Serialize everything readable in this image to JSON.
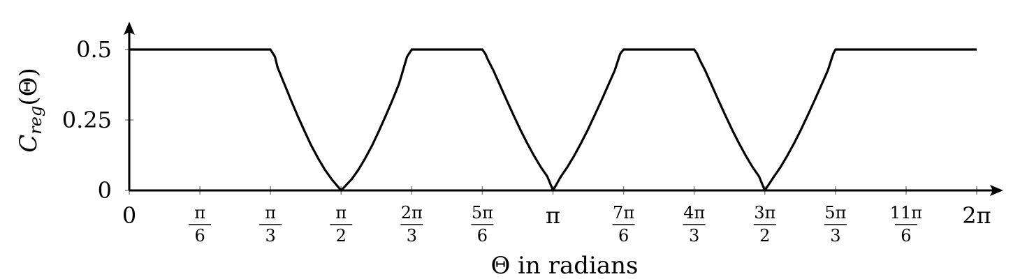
{
  "chart_data": {
    "type": "line",
    "title": "",
    "xlabel": "Θ in radians",
    "ylabel": {
      "main": "C",
      "sub": "reg",
      "arg": "(Θ)"
    },
    "xlim": [
      0,
      6.283185307
    ],
    "ylim": [
      0,
      0.6
    ],
    "grid": false,
    "legend": "none",
    "line_color": "#000000",
    "x_ticks": [
      {
        "value": 0,
        "num": "0",
        "den": ""
      },
      {
        "value": 0.523598776,
        "num": "π",
        "den": "6"
      },
      {
        "value": 1.047197551,
        "num": "π",
        "den": "3"
      },
      {
        "value": 1.570796327,
        "num": "π",
        "den": "2"
      },
      {
        "value": 2.094395102,
        "num": "2π",
        "den": "3"
      },
      {
        "value": 2.617993878,
        "num": "5π",
        "den": "6"
      },
      {
        "value": 3.141592654,
        "num": "π",
        "den": ""
      },
      {
        "value": 3.665191429,
        "num": "7π",
        "den": "6"
      },
      {
        "value": 4.188790205,
        "num": "4π",
        "den": "3"
      },
      {
        "value": 4.71238898,
        "num": "3π",
        "den": "2"
      },
      {
        "value": 5.235987756,
        "num": "5π",
        "den": "3"
      },
      {
        "value": 5.759586532,
        "num": "11π",
        "den": "6"
      },
      {
        "value": 6.283185307,
        "num": "2π",
        "den": ""
      }
    ],
    "y_ticks": [
      {
        "value": 0,
        "label": "0"
      },
      {
        "value": 0.25,
        "label": "0.25"
      },
      {
        "value": 0.5,
        "label": "0.5"
      }
    ],
    "series": [
      {
        "x": [
          0,
          1.047,
          1.08,
          1.1,
          1.15,
          1.2,
          1.25,
          1.3,
          1.35,
          1.4,
          1.45,
          1.5,
          1.571,
          1.65,
          1.7,
          1.75,
          1.8,
          1.85,
          1.9,
          1.95,
          2.0,
          2.06,
          2.094,
          2.618,
          2.64,
          2.66,
          2.7,
          2.75,
          2.8,
          2.85,
          2.9,
          2.95,
          3.0,
          3.05,
          3.1,
          3.142,
          3.2,
          3.25,
          3.3,
          3.35,
          3.4,
          3.45,
          3.5,
          3.55,
          3.6,
          3.64,
          3.665,
          4.189,
          4.21,
          4.23,
          4.27,
          4.32,
          4.37,
          4.42,
          4.47,
          4.52,
          4.57,
          4.62,
          4.67,
          4.712,
          4.78,
          4.83,
          4.88,
          4.93,
          4.98,
          5.03,
          5.08,
          5.13,
          5.18,
          5.22,
          5.236,
          6.283
        ],
        "y": [
          0.5,
          0.5,
          0.475,
          0.436,
          0.378,
          0.319,
          0.263,
          0.21,
          0.159,
          0.114,
          0.074,
          0.04,
          0.0,
          0.04,
          0.074,
          0.114,
          0.159,
          0.21,
          0.263,
          0.319,
          0.378,
          0.475,
          0.5,
          0.5,
          0.485,
          0.463,
          0.426,
          0.372,
          0.318,
          0.266,
          0.215,
          0.168,
          0.124,
          0.084,
          0.049,
          0.0,
          0.049,
          0.084,
          0.124,
          0.168,
          0.215,
          0.266,
          0.318,
          0.372,
          0.426,
          0.485,
          0.5,
          0.5,
          0.485,
          0.463,
          0.426,
          0.372,
          0.318,
          0.266,
          0.215,
          0.168,
          0.124,
          0.084,
          0.049,
          0.0,
          0.049,
          0.084,
          0.124,
          0.168,
          0.215,
          0.266,
          0.318,
          0.372,
          0.426,
          0.485,
          0.5,
          0.5
        ]
      }
    ]
  }
}
